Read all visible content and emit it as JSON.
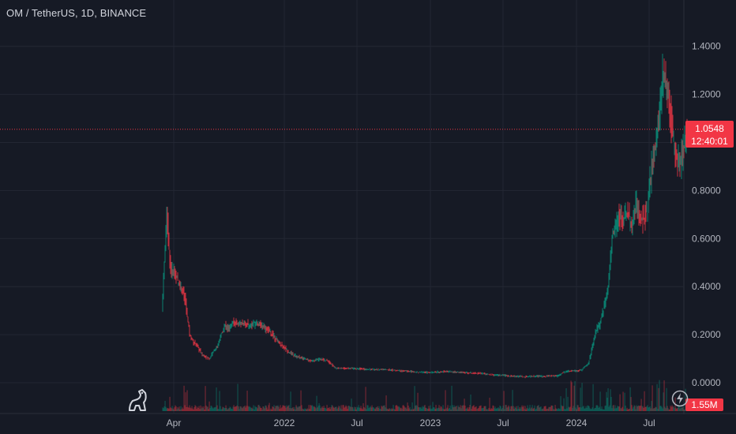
{
  "chart_data": {
    "type": "candlestick",
    "title": "OM / TetherUS, 1D, BINANCE",
    "y_ticks": [
      0.0,
      0.2,
      0.4,
      0.6,
      0.8,
      1.0,
      1.2,
      1.4
    ],
    "y_tick_labels": [
      "0.0000",
      "0.2000",
      "0.4000",
      "0.6000",
      "0.8000",
      "1.0000",
      "1.2000",
      "1.4000"
    ],
    "x_tick_labels": [
      "Apr",
      "2022",
      "Jul",
      "2023",
      "Jul",
      "2024",
      "Jul"
    ],
    "ylim": [
      -0.075,
      1.47
    ],
    "last_price": "1.0548",
    "countdown": "12:40:01",
    "volume_label": "1.55M",
    "up_color": "#089981",
    "down_color": "#f23645",
    "grid": true,
    "price_path": [
      [
        0,
        0.3
      ],
      [
        3,
        0.5
      ],
      [
        6,
        0.7
      ],
      [
        9,
        0.55
      ],
      [
        12,
        0.45
      ],
      [
        15,
        0.48
      ],
      [
        20,
        0.42
      ],
      [
        25,
        0.4
      ],
      [
        30,
        0.33
      ],
      [
        35,
        0.2
      ],
      [
        40,
        0.17
      ],
      [
        45,
        0.15
      ],
      [
        50,
        0.12
      ],
      [
        55,
        0.11
      ],
      [
        60,
        0.1
      ],
      [
        65,
        0.13
      ],
      [
        70,
        0.15
      ],
      [
        75,
        0.2
      ],
      [
        80,
        0.24
      ],
      [
        85,
        0.22
      ],
      [
        90,
        0.26
      ],
      [
        95,
        0.24
      ],
      [
        100,
        0.25
      ],
      [
        110,
        0.24
      ],
      [
        120,
        0.25
      ],
      [
        130,
        0.23
      ],
      [
        140,
        0.2
      ],
      [
        150,
        0.16
      ],
      [
        160,
        0.13
      ],
      [
        170,
        0.11
      ],
      [
        180,
        0.1
      ],
      [
        190,
        0.09
      ],
      [
        200,
        0.1
      ],
      [
        210,
        0.09
      ],
      [
        220,
        0.06
      ],
      [
        240,
        0.06
      ],
      [
        260,
        0.055
      ],
      [
        280,
        0.055
      ],
      [
        300,
        0.05
      ],
      [
        320,
        0.045
      ],
      [
        340,
        0.042
      ],
      [
        360,
        0.047
      ],
      [
        380,
        0.042
      ],
      [
        400,
        0.04
      ],
      [
        420,
        0.032
      ],
      [
        440,
        0.028
      ],
      [
        460,
        0.025
      ],
      [
        480,
        0.027
      ],
      [
        500,
        0.028
      ],
      [
        510,
        0.045
      ],
      [
        520,
        0.05
      ],
      [
        530,
        0.05
      ],
      [
        540,
        0.08
      ],
      [
        550,
        0.22
      ],
      [
        555,
        0.25
      ],
      [
        560,
        0.32
      ],
      [
        565,
        0.4
      ],
      [
        570,
        0.6
      ],
      [
        575,
        0.65
      ],
      [
        580,
        0.7
      ],
      [
        585,
        0.68
      ],
      [
        590,
        0.72
      ],
      [
        595,
        0.65
      ],
      [
        600,
        0.75
      ],
      [
        605,
        0.7
      ],
      [
        610,
        0.68
      ],
      [
        615,
        0.72
      ],
      [
        620,
        0.9
      ],
      [
        625,
        0.98
      ],
      [
        630,
        1.15
      ],
      [
        635,
        1.3
      ],
      [
        640,
        1.22
      ],
      [
        645,
        1.1
      ],
      [
        650,
        0.95
      ],
      [
        655,
        0.9
      ],
      [
        660,
        0.97
      ],
      [
        665,
        1.05
      ]
    ]
  }
}
